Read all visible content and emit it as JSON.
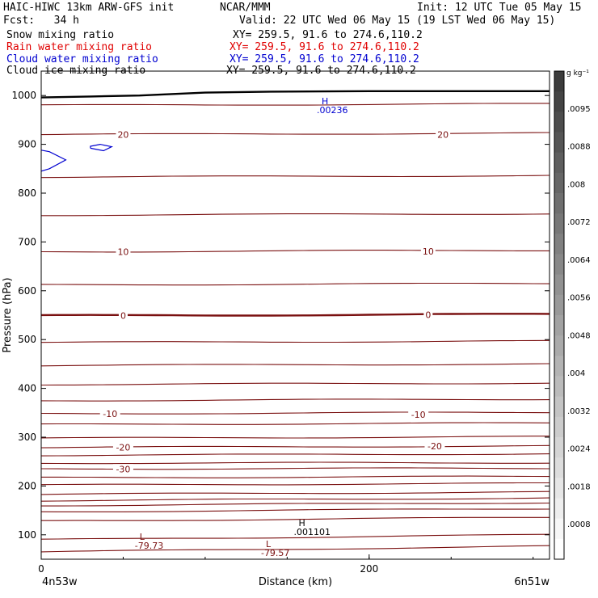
{
  "header": {
    "model": "HAIC-HIWC 13km ARW-GFS init",
    "org": "NCAR/MMM",
    "init": "Init: 12 UTC Tue 05 May 15",
    "fcst": "Fcst:   34 h",
    "valid": "Valid: 22 UTC Wed 06 May 15 (19 LST Wed 06 May 15)",
    "fields": [
      {
        "name": "Snow mixing ratio",
        "xy": "XY= 259.5, 91.6 to 274.6,110.2",
        "color": "#000000"
      },
      {
        "name": "Rain water mixing ratio",
        "xy": "XY= 259.5, 91.6 to 274.6,110.2",
        "color": "#e00000"
      },
      {
        "name": "Cloud water mixing ratio",
        "xy": "XY= 259.5, 91.6 to 274.6,110.2",
        "color": "#0000d0"
      },
      {
        "name": "Cloud ice mixing ratio",
        "xy": "XY= 259.5, 91.6 to 274.6,110.2",
        "color": "#000000"
      }
    ]
  },
  "chart_data": {
    "type": "contour",
    "xlabel": "Distance (km)",
    "ylabel": "Pressure (hPa)",
    "xlim": [
      0,
      310
    ],
    "ylim": [
      1050,
      50
    ],
    "xticks": [
      {
        "v": 0,
        "label": "0"
      },
      {
        "v": 200,
        "label": "200"
      }
    ],
    "yticks": [
      100,
      200,
      300,
      400,
      500,
      600,
      700,
      800,
      900,
      1000
    ],
    "endpoints": {
      "left": "4n53w",
      "right": "6n51w"
    },
    "colorbar": {
      "unit": "g kg⁻¹",
      "labels": [
        ".0095",
        ".0088",
        ".008",
        ".0072",
        ".0064",
        ".0056",
        ".0048",
        ".004",
        ".0032",
        ".0024",
        ".0018",
        ".0008"
      ]
    },
    "temperature_isotherms": {
      "color": "#7a1010",
      "levels_p_at_x0": [
        65,
        90,
        128,
        147,
        160,
        170,
        183,
        202,
        217,
        235,
        247,
        263,
        279,
        298,
        326,
        348,
        375,
        408,
        447,
        494,
        549,
        612,
        680,
        755,
        833,
        920,
        980
      ],
      "labels": [
        {
          "x": 50,
          "p": 235,
          "text": "-30"
        },
        {
          "x": 50,
          "p": 279,
          "text": "-20"
        },
        {
          "x": 240,
          "p": 282,
          "text": "-20"
        },
        {
          "x": 42,
          "p": 348,
          "text": "-10"
        },
        {
          "x": 230,
          "p": 346,
          "text": "-10"
        },
        {
          "x": 50,
          "p": 549,
          "text": "0"
        },
        {
          "x": 236,
          "p": 551,
          "text": "0"
        },
        {
          "x": 50,
          "p": 680,
          "text": "10"
        },
        {
          "x": 236,
          "p": 681,
          "text": "10"
        },
        {
          "x": 50,
          "p": 920,
          "text": "20"
        },
        {
          "x": 245,
          "p": 920,
          "text": "20"
        }
      ],
      "zero_isotherm_p": 550
    },
    "extrema": [
      {
        "kind": "L",
        "value": "-79.73",
        "x": 60,
        "p": 90,
        "color": "#7a1010"
      },
      {
        "kind": "L",
        "value": "-79.57",
        "x": 137,
        "p": 75,
        "color": "#7a1010"
      },
      {
        "kind": "H",
        "value": ".001101",
        "x": 157,
        "p": 118,
        "color": "#000000"
      },
      {
        "kind": "H",
        "value": ".00236",
        "x": 171,
        "p": 982,
        "color": "#0000d0"
      }
    ],
    "cloud_water_contours": [
      {
        "points": [
          [
            0,
            845
          ],
          [
            5,
            850
          ],
          [
            15,
            868
          ],
          [
            5,
            885
          ],
          [
            0,
            888
          ]
        ]
      },
      {
        "points": [
          [
            30,
            892
          ],
          [
            38,
            887
          ],
          [
            43,
            895
          ],
          [
            36,
            900
          ],
          [
            30,
            896
          ],
          [
            30,
            892
          ]
        ]
      }
    ],
    "terrain_p": [
      [
        0,
        996
      ],
      [
        30,
        998
      ],
      [
        60,
        1000
      ],
      [
        100,
        1006
      ],
      [
        140,
        1008
      ],
      [
        200,
        1009
      ],
      [
        260,
        1009
      ],
      [
        310,
        1009
      ]
    ]
  }
}
